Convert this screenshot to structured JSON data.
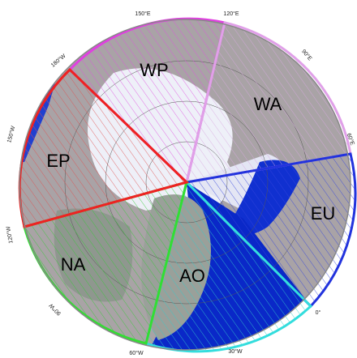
{
  "map": {
    "regions": [
      {
        "label": "WP"
      },
      {
        "label": "WA"
      },
      {
        "label": "EP"
      },
      {
        "label": "EU"
      },
      {
        "label": "NA"
      },
      {
        "label": "AO"
      }
    ],
    "longitude_labels": [
      "150°E",
      "120°E",
      "90°E",
      "60°E",
      "180°W",
      "150°W",
      "120°W",
      "90°W",
      "60°W",
      "30°W",
      "0°"
    ]
  }
}
